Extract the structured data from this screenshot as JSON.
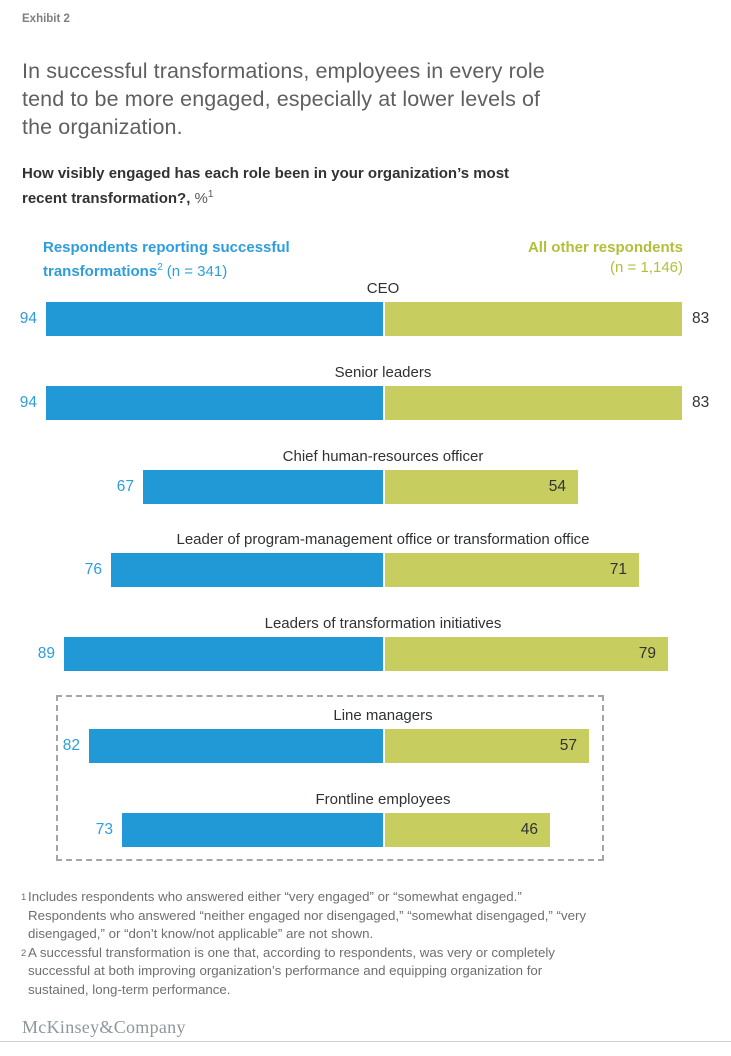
{
  "exhibit_label": "Exhibit 2",
  "title": "In successful transformations, employees in every role\ntend to be more engaged, especially at lower levels of\nthe organization.",
  "subtitle": {
    "bold": "How visibly engaged has each role been in your organization’s most\nrecent transformation?,",
    "suffix": "%",
    "sup": "1"
  },
  "legend": {
    "successful": {
      "line1": "Respondents reporting successful",
      "line2_bold": "transformations",
      "line2_sup": "2",
      "line2_rest": "(n = 341)"
    },
    "other": {
      "line1": "All other respondents",
      "line2": "(n = 1,146)"
    }
  },
  "chart_data": {
    "type": "bar",
    "orientation": "horizontal-diverging",
    "title": "How visibly engaged has each role been in your organization’s most recent transformation?, %",
    "categories": [
      "CEO",
      "Senior leaders",
      "Chief human-resources officer",
      "Leader of program-management office or transformation office",
      "Leaders of transformation initiatives",
      "Line managers",
      "Frontline employees"
    ],
    "series": [
      {
        "name": "Respondents reporting successful transformations (n = 341)",
        "color": "#2299d7",
        "values": [
          94,
          94,
          67,
          76,
          89,
          82,
          73
        ]
      },
      {
        "name": "All other respondents (n = 1,146)",
        "color": "#c7cd5f",
        "values": [
          83,
          83,
          54,
          71,
          79,
          57,
          46
        ]
      }
    ],
    "value_range": [
      0,
      100
    ],
    "legend_position": "top",
    "highlight_box_categories": [
      "Line managers",
      "Frontline employees"
    ]
  },
  "footnotes": [
    {
      "sup": "1",
      "text": "Includes respondents who answered either “very engaged” or “somewhat engaged.”\nRespondents who answered “neither engaged nor disengaged,” “somewhat disengaged,” “very\ndisengaged,” or “don’t know/not applicable” are not shown."
    },
    {
      "sup": "2",
      "text": "A successful transformation is one that, according to respondents, was very or completely\nsuccessful at both improving organization’s performance and equipping organization for\nsustained, long-term performance."
    }
  ],
  "footer": {
    "wordmark": "McKinsey&Company"
  },
  "colors": {
    "blue": "#2299d7",
    "green": "#c7cd5f",
    "blue_text": "#2d9edb",
    "green_text": "#b2bf3b",
    "dark_text": "#313335",
    "title_gray": "#5e5f61",
    "footnote_gray": "#6e6f72",
    "dashed_border": "#a3a5a8"
  }
}
